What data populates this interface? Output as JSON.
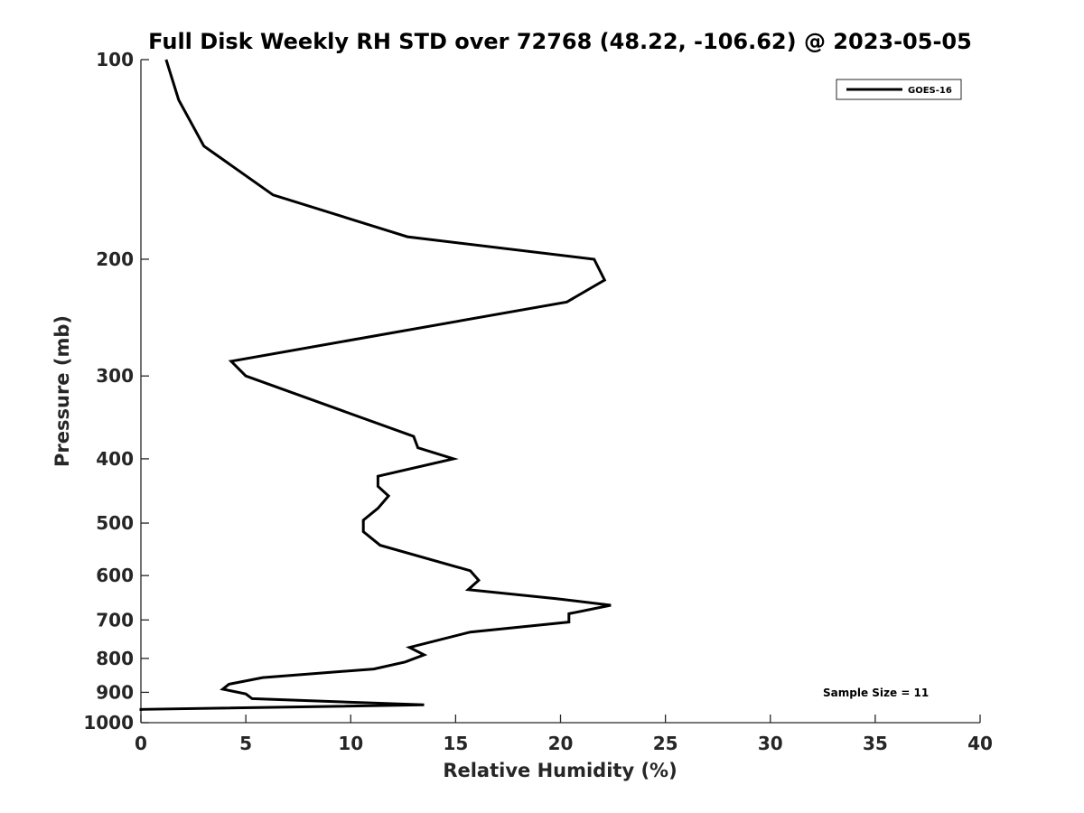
{
  "chart_data": {
    "type": "line",
    "title": "Full Disk Weekly RH STD over 72768 (48.22, -106.62) @ 2023-05-05",
    "xlabel": "Relative Humidity (%)",
    "ylabel": "Pressure (mb)",
    "xlim": [
      0,
      40
    ],
    "ylim": [
      100,
      1000
    ],
    "yscale": "log",
    "y_reversed": true,
    "x_ticks": [
      "0",
      "5",
      "10",
      "15",
      "20",
      "25",
      "30",
      "35",
      "40"
    ],
    "x_tick_values": [
      0,
      5,
      10,
      15,
      20,
      25,
      30,
      35,
      40
    ],
    "y_ticks": [
      "100",
      "200",
      "300",
      "400",
      "500",
      "600",
      "700",
      "800",
      "900",
      "1000"
    ],
    "y_tick_values": [
      100,
      200,
      300,
      400,
      500,
      600,
      700,
      800,
      900,
      1000
    ],
    "grid": false,
    "legend_position": "top-right",
    "annotation": "Sample Size = 11",
    "series": [
      {
        "name": "GOES-16",
        "color": "#000000",
        "points": [
          [
            1.2,
            100
          ],
          [
            1.8,
            115
          ],
          [
            3.0,
            135
          ],
          [
            6.3,
            160
          ],
          [
            12.7,
            185
          ],
          [
            21.6,
            200
          ],
          [
            22.1,
            215
          ],
          [
            20.3,
            232
          ],
          [
            4.3,
            285
          ],
          [
            5.0,
            300
          ],
          [
            13.0,
            370
          ],
          [
            13.2,
            385
          ],
          [
            14.9,
            400
          ],
          [
            11.3,
            425
          ],
          [
            11.3,
            440
          ],
          [
            11.8,
            455
          ],
          [
            11.3,
            475
          ],
          [
            10.6,
            495
          ],
          [
            10.6,
            515
          ],
          [
            11.4,
            540
          ],
          [
            15.7,
            590
          ],
          [
            16.1,
            610
          ],
          [
            15.6,
            630
          ],
          [
            19.8,
            650
          ],
          [
            22.4,
            665
          ],
          [
            20.4,
            685
          ],
          [
            20.4,
            705
          ],
          [
            15.7,
            730
          ],
          [
            12.8,
            770
          ],
          [
            13.5,
            790
          ],
          [
            12.6,
            810
          ],
          [
            11.1,
            830
          ],
          [
            5.8,
            855
          ],
          [
            4.2,
            875
          ],
          [
            3.9,
            890
          ],
          [
            5.0,
            905
          ],
          [
            5.3,
            920
          ],
          [
            13.5,
            940
          ],
          [
            0.0,
            955
          ],
          [
            0.0,
            960
          ]
        ]
      }
    ]
  }
}
